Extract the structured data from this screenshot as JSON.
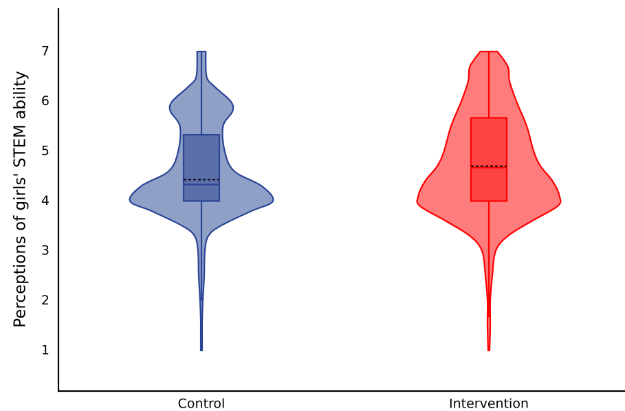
{
  "chart_data": {
    "type": "violin",
    "title": "",
    "xlabel": "",
    "ylabel": "Perceptions of girls' STEM ability",
    "ylim": [
      0.2,
      7.8
    ],
    "yticks": [
      1,
      2,
      3,
      4,
      5,
      6,
      7
    ],
    "ytick_labels": [
      "1",
      "2",
      "3",
      "4",
      "5",
      "6",
      "7"
    ],
    "categories": [
      "Control",
      "Intervention"
    ],
    "grid": false,
    "legend": "none",
    "groups": [
      {
        "category": "Control",
        "fill_color": "#8fa0c7",
        "edge_color": "#2a4496",
        "box_color": "#5b6fa9",
        "min": 1.0,
        "max": 7.0,
        "q1": 4.0,
        "median": 4.33,
        "mean": 4.43,
        "q3": 5.33,
        "whisker_low": 2.0,
        "whisker_high": 7.0,
        "density": [
          [
            1.0,
            0.0096
          ],
          [
            1.3,
            0.0096
          ],
          [
            1.6,
            0.0096
          ],
          [
            2.0,
            0.0193
          ],
          [
            2.5,
            0.0386
          ],
          [
            3.0,
            0.0482
          ],
          [
            3.3,
            0.0964
          ],
          [
            3.5,
            0.2651
          ],
          [
            3.8,
            0.6988
          ],
          [
            4.0,
            1.0
          ],
          [
            4.3,
            0.8434
          ],
          [
            4.6,
            0.4578
          ],
          [
            5.0,
            0.3253
          ],
          [
            5.5,
            0.3012
          ],
          [
            5.8,
            0.4337
          ],
          [
            6.0,
            0.4096
          ],
          [
            6.3,
            0.1807
          ],
          [
            6.5,
            0.0723
          ],
          [
            7.0,
            0.0602
          ]
        ]
      },
      {
        "category": "Intervention",
        "fill_color": "#ff7c7c",
        "edge_color": "#ff0000",
        "box_color": "#ff4444",
        "min": 1.0,
        "max": 7.0,
        "q1": 4.0,
        "median": 4.67,
        "mean": 4.7,
        "q3": 5.67,
        "whisker_low": 1.67,
        "whisker_high": 7.0,
        "density": [
          [
            1.0,
            0.0096
          ],
          [
            1.5,
            0.0193
          ],
          [
            2.0,
            0.0193
          ],
          [
            2.5,
            0.0482
          ],
          [
            3.0,
            0.0964
          ],
          [
            3.3,
            0.2651
          ],
          [
            3.6,
            0.6024
          ],
          [
            3.9,
            0.9639
          ],
          [
            4.1,
            0.9879
          ],
          [
            4.4,
            0.8916
          ],
          [
            4.7,
            0.7229
          ],
          [
            5.0,
            0.6265
          ],
          [
            5.5,
            0.5301
          ],
          [
            6.0,
            0.3855
          ],
          [
            6.4,
            0.2892
          ],
          [
            6.7,
            0.2651
          ],
          [
            7.0,
            0.1205
          ]
        ]
      }
    ]
  }
}
